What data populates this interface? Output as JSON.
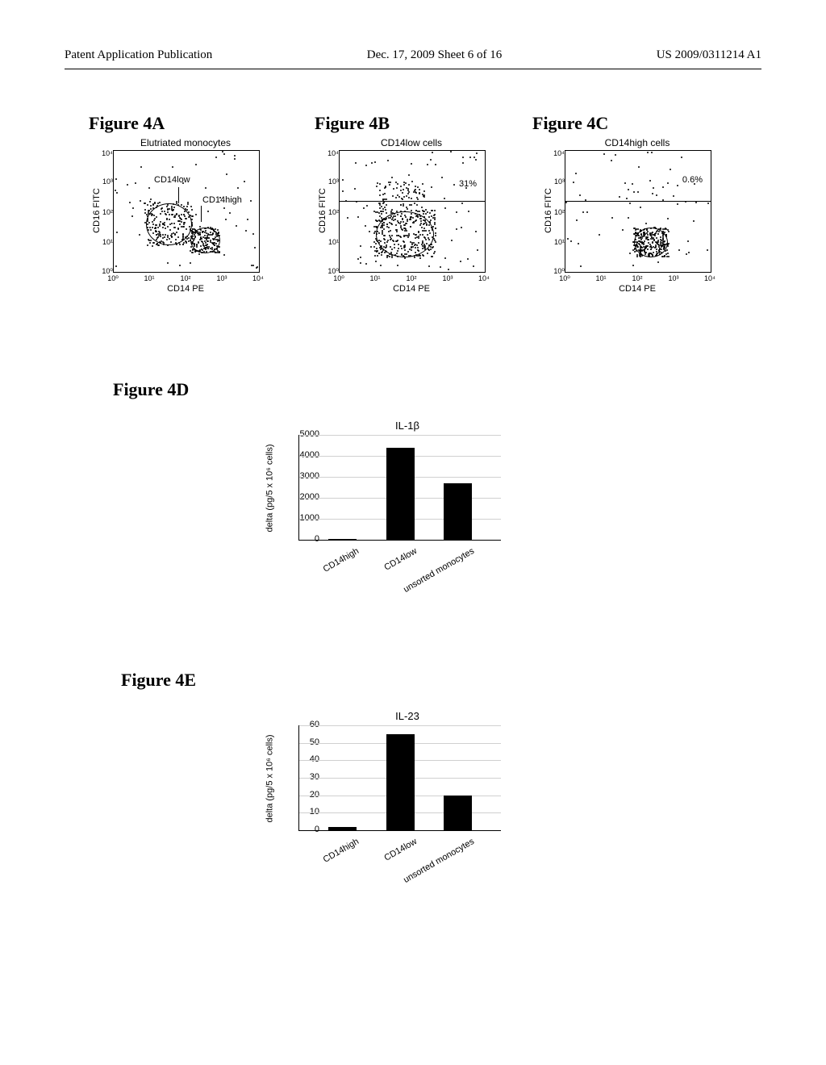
{
  "header": {
    "left": "Patent Application Publication",
    "center": "Dec. 17, 2009  Sheet 6 of 16",
    "right": "US 2009/0311214 A1"
  },
  "figure_labels": {
    "a": "Figure 4A",
    "b": "Figure 4B",
    "c": "Figure 4C",
    "d": "Figure 4D",
    "e": "Figure 4E"
  },
  "scatter": {
    "x_axis_label": "CD14 PE",
    "y_axis_label": "CD16 FITC",
    "x_ticks": [
      "10⁰",
      "10¹",
      "10²",
      "10³",
      "10⁴"
    ],
    "y_ticks": [
      "10⁰",
      "10¹",
      "10²",
      "10³",
      "10⁴"
    ],
    "panels": [
      {
        "title": "Elutriated monocytes",
        "annotations": [
          {
            "text": "CD14low",
            "x": 50,
            "y": 30
          },
          {
            "text": "CD14high",
            "x": 110,
            "y": 55
          }
        ],
        "gate_line": null,
        "percent": null
      },
      {
        "title": "CD14low cells",
        "annotations": [],
        "gate_line": 62,
        "percent": "31%"
      },
      {
        "title": "CD14high cells",
        "annotations": [],
        "gate_line": 62,
        "percent": "0.6%"
      }
    ]
  },
  "bar_d": {
    "title": "IL-1β",
    "ylabel": "delta (pg/5 x 10⁶ cells)",
    "ymax": 5000,
    "yticks": [
      0,
      1000,
      2000,
      3000,
      4000,
      5000
    ],
    "categories": [
      "CD14high",
      "CD14low",
      "unsorted monocytes"
    ],
    "values": [
      50,
      4400,
      2700
    ]
  },
  "bar_e": {
    "title": "IL-23",
    "ylabel": "delta (pg/5 x 10⁶ cells)",
    "ymax": 60,
    "yticks": [
      0,
      10,
      20,
      30,
      40,
      50,
      60
    ],
    "categories": [
      "CD14high",
      "CD14low",
      "unsorted monocytes"
    ],
    "values": [
      2,
      55,
      20
    ]
  },
  "colors": {
    "text": "#000000",
    "bar_fill": "#000000",
    "grid": "#d0d0d0",
    "background": "#ffffff"
  }
}
